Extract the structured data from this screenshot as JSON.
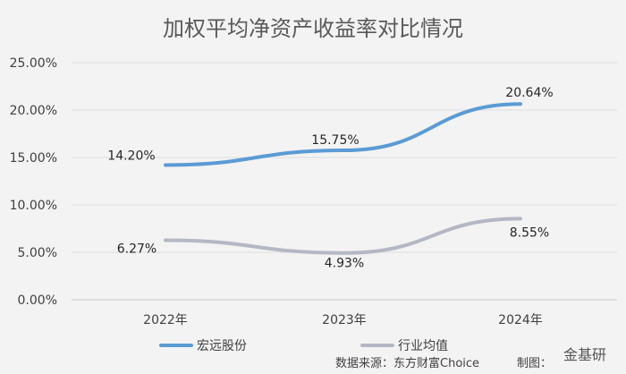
{
  "chart_data": {
    "type": "line",
    "title": "加权平均净资产收益率对比情况",
    "categories": [
      "2022年",
      "2023年",
      "2024年"
    ],
    "series": [
      {
        "name": "宏远股份",
        "values": [
          14.2,
          15.75,
          20.64
        ],
        "labels": [
          "14.20%",
          "15.75%",
          "20.64%"
        ],
        "color": "#5b9bd5"
      },
      {
        "name": "行业均值",
        "values": [
          6.27,
          4.93,
          8.55
        ],
        "labels": [
          "6.27%",
          "4.93%",
          "8.55%"
        ],
        "color": "#b4b8c4"
      }
    ],
    "yticks": [
      "0.00%",
      "5.00%",
      "10.00%",
      "15.00%",
      "20.00%",
      "25.00%"
    ],
    "ylim": [
      0,
      25
    ],
    "grid": true,
    "legend_position": "bottom"
  },
  "source": "数据来源：东方财富Choice",
  "maker": "制图：",
  "watermark": "金基研"
}
